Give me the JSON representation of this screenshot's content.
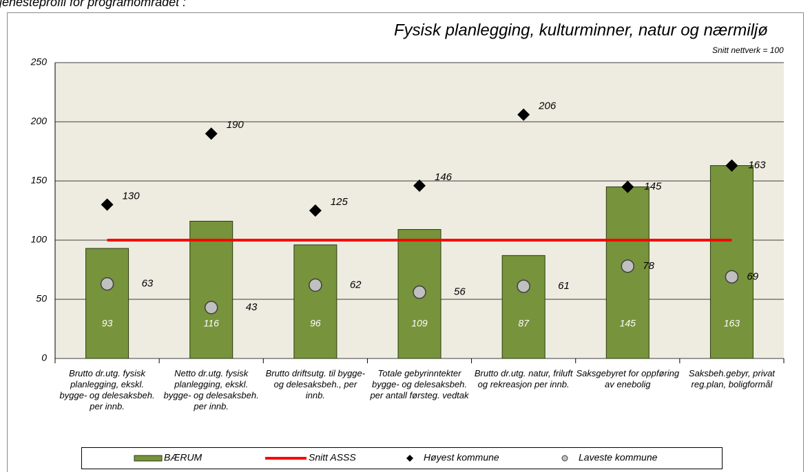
{
  "header": "tjenesteprofil for programområdet :",
  "chart_data": {
    "type": "bar",
    "title": "Fysisk planlegging, kulturminner, natur og nærmiljø",
    "subtitle": "Snitt nettverk = 100",
    "categories": [
      "Brutto dr.utg. fysisk planlegging, ekskl. bygge- og delesaksbeh. per innb.",
      "Netto dr.utg. fysisk planlegging, ekskl. bygge- og delesaksbeh. per innb.",
      "Brutto driftsutg. til bygge- og delesaksbeh., per innb.",
      "Totale gebyrinntekter bygge- og delesaksbeh. per antall førsteg. vedtak",
      "Brutto dr.utg. natur, friluft og rekreasjon per innb.",
      "Saksgebyret for oppføring av enebolig",
      "Saksbeh.gebyr, privat reg.plan, boligformål"
    ],
    "series": [
      {
        "name": "BÆRUM",
        "type": "bar",
        "color": "#77933c",
        "values": [
          93,
          116,
          96,
          109,
          87,
          145,
          163
        ]
      },
      {
        "name": "Snitt ASSS",
        "type": "line",
        "color": "#ff0000",
        "values": [
          100,
          100,
          100,
          100,
          100,
          100,
          100
        ]
      },
      {
        "name": "Høyest kommune",
        "type": "scatter",
        "marker": "diamond",
        "color": "#000000",
        "values": [
          130,
          190,
          125,
          146,
          206,
          145,
          163
        ]
      },
      {
        "name": "Laveste kommune",
        "type": "scatter",
        "marker": "circle",
        "color": "#c0c0c0",
        "values": [
          63,
          43,
          62,
          56,
          61,
          78,
          69
        ]
      }
    ],
    "ylim": [
      0,
      250
    ],
    "yticks": [
      0,
      50,
      100,
      150,
      200,
      250
    ],
    "grid": true,
    "legend": "bottom"
  }
}
